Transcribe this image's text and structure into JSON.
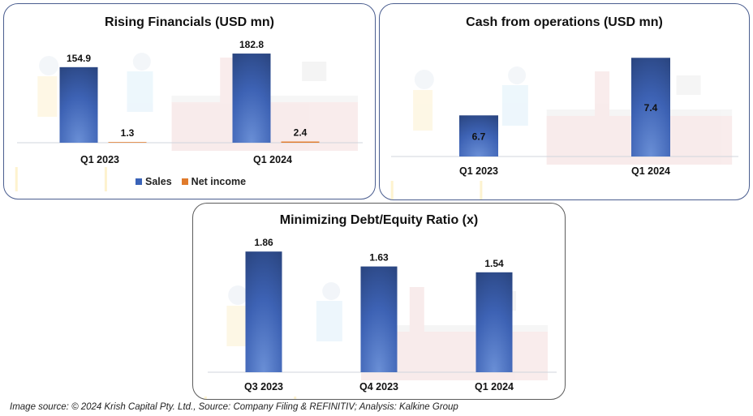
{
  "chart_data": [
    {
      "type": "bar",
      "title": "Rising Financials (USD mn)",
      "categories": [
        "Q1 2023",
        "Q1 2024"
      ],
      "series": [
        {
          "name": "Sales",
          "values": [
            154.9,
            182.8
          ],
          "color": "#3a5ba8"
        },
        {
          "name": "Net income",
          "values": [
            1.3,
            2.4
          ],
          "color": "#e07b2c"
        }
      ],
      "data_labels": [
        "154.9",
        "182.8",
        "1.3",
        "2.4"
      ],
      "legend": {
        "position": "bottom",
        "entries": [
          "Sales",
          "Net income"
        ]
      },
      "grid": false,
      "ylim": [
        0,
        200
      ]
    },
    {
      "type": "bar",
      "title": "Cash from operations (USD mn)",
      "categories": [
        "Q1 2023",
        "Q1 2024"
      ],
      "series": [
        {
          "name": "Cash from operations",
          "values": [
            6.7,
            7.4
          ],
          "color": "#3a5ba8"
        }
      ],
      "data_labels": [
        "6.7",
        "7.4"
      ],
      "legend": null,
      "grid": false,
      "ylim": [
        6.2,
        7.6
      ]
    },
    {
      "type": "bar",
      "title": "Minimizing Debt/Equity Ratio (x)",
      "categories": [
        "Q3 2023",
        "Q4 2023",
        "Q1 2024"
      ],
      "series": [
        {
          "name": "Debt/Equity",
          "values": [
            1.86,
            1.63,
            1.54
          ],
          "color": "#3a5ba8"
        }
      ],
      "data_labels": [
        "1.86",
        "1.63",
        "1.54"
      ],
      "legend": null,
      "grid": false,
      "ylim": [
        0,
        2
      ]
    }
  ],
  "footnote": "Image source: © 2024 Krish Capital Pty. Ltd., Source: Company Filing & REFINITIV; Analysis: Kalkine Group",
  "colors": {
    "bar_top": "#2a4580",
    "bar_bottom": "#6a8fd6",
    "net_income": "#e07b2c",
    "panel_border_blue": "#4a5d8f",
    "panel_border_gray": "#5c5c5c"
  }
}
